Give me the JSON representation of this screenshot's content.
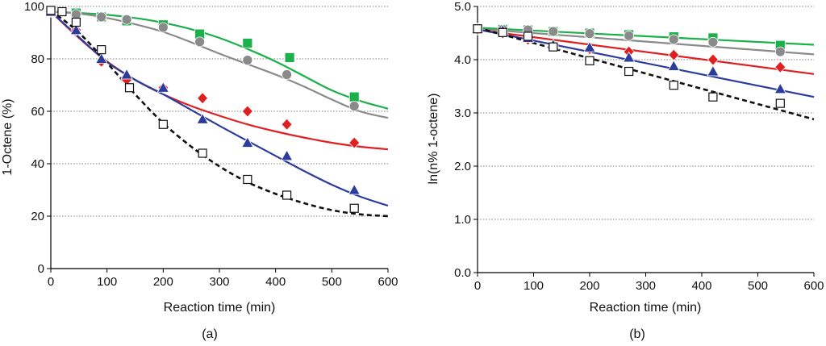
{
  "chart_data": [
    {
      "type": "scatter",
      "panel_label": "(a)",
      "xlabel": "Reaction time (min)",
      "ylabel": "1-Octene (%)",
      "xlim": [
        0,
        600
      ],
      "ylim": [
        0,
        100
      ],
      "xticks": [
        "0",
        "100",
        "200",
        "300",
        "400",
        "500",
        "600"
      ],
      "yticks": [
        "0",
        "20",
        "40",
        "60",
        "80",
        "100"
      ],
      "grid": "horizontal-dotted",
      "series": [
        {
          "name": "green squares",
          "color": "#1ab04a",
          "marker": "square-filled",
          "line": "solid",
          "points": [
            [
              0,
              98
            ],
            [
              45,
              97.5
            ],
            [
              90,
              96
            ],
            [
              135,
              94.5
            ],
            [
              200,
              93
            ],
            [
              265,
              89.5
            ],
            [
              350,
              86
            ],
            [
              425,
              80.5
            ],
            [
              540,
              65.5
            ]
          ],
          "fit": [
            [
              0,
              98
            ],
            [
              50,
              97.5
            ],
            [
              100,
              96.8
            ],
            [
              150,
              95.6
            ],
            [
              200,
              93.8
            ],
            [
              250,
              91.3
            ],
            [
              300,
              88
            ],
            [
              350,
              83.8
            ],
            [
              400,
              79
            ],
            [
              450,
              73.5
            ],
            [
              500,
              68
            ],
            [
              550,
              64
            ],
            [
              600,
              61
            ]
          ]
        },
        {
          "name": "gray circles",
          "color": "#8a8a8a",
          "marker": "circle-filled",
          "line": "solid",
          "points": [
            [
              0,
              98
            ],
            [
              45,
              97
            ],
            [
              90,
              96
            ],
            [
              135,
              95
            ],
            [
              200,
              92
            ],
            [
              265,
              86.5
            ],
            [
              350,
              79.5
            ],
            [
              420,
              74
            ],
            [
              540,
              62
            ]
          ],
          "fit": [
            [
              0,
              98
            ],
            [
              50,
              97.3
            ],
            [
              100,
              95.6
            ],
            [
              150,
              93.2
            ],
            [
              200,
              90.3
            ],
            [
              250,
              86.3
            ],
            [
              300,
              82
            ],
            [
              350,
              78
            ],
            [
              400,
              74
            ],
            [
              450,
              69.5
            ],
            [
              500,
              64.5
            ],
            [
              550,
              60
            ],
            [
              600,
              57.5
            ]
          ]
        },
        {
          "name": "red diamonds",
          "color": "#e02020",
          "marker": "diamond-filled",
          "line": "solid",
          "points": [
            [
              0,
              98
            ],
            [
              45,
              91
            ],
            [
              90,
              79
            ],
            [
              135,
              72
            ],
            [
              200,
              69
            ],
            [
              270,
              65
            ],
            [
              350,
              60
            ],
            [
              420,
              55
            ],
            [
              540,
              48
            ]
          ],
          "fit": [
            [
              0,
              98
            ],
            [
              50,
              88
            ],
            [
              100,
              79
            ],
            [
              150,
              72
            ],
            [
              200,
              66.5
            ],
            [
              250,
              62
            ],
            [
              300,
              58.3
            ],
            [
              350,
              55
            ],
            [
              400,
              52.3
            ],
            [
              450,
              50
            ],
            [
              500,
              48
            ],
            [
              550,
              46.5
            ],
            [
              600,
              45.5
            ]
          ]
        },
        {
          "name": "blue triangles",
          "color": "#2c3c9c",
          "marker": "triangle-filled",
          "line": "solid",
          "points": [
            [
              0,
              98
            ],
            [
              45,
              91
            ],
            [
              90,
              80
            ],
            [
              135,
              74
            ],
            [
              200,
              69
            ],
            [
              270,
              57
            ],
            [
              350,
              48
            ],
            [
              420,
              43
            ],
            [
              540,
              30
            ]
          ],
          "fit": [
            [
              0,
              98
            ],
            [
              50,
              88.3
            ],
            [
              100,
              78.8
            ],
            [
              150,
              72
            ],
            [
              200,
              66.5
            ],
            [
              250,
              60.5
            ],
            [
              300,
              54.5
            ],
            [
              350,
              48.7
            ],
            [
              400,
              43
            ],
            [
              450,
              37.3
            ],
            [
              500,
              32
            ],
            [
              550,
              27.5
            ],
            [
              600,
              24
            ]
          ]
        },
        {
          "name": "open squares",
          "color": "#111111",
          "marker": "square-open",
          "line": "dashed",
          "points": [
            [
              0,
              98.5
            ],
            [
              20,
              98
            ],
            [
              45,
              94
            ],
            [
              90,
              83.5
            ],
            [
              140,
              69
            ],
            [
              200,
              55
            ],
            [
              270,
              44
            ],
            [
              350,
              34
            ],
            [
              420,
              28
            ],
            [
              540,
              23
            ]
          ],
          "fit": [
            [
              0,
              98.5
            ],
            [
              50,
              90
            ],
            [
              100,
              78.5
            ],
            [
              150,
              66.5
            ],
            [
              200,
              55.5
            ],
            [
              250,
              46.5
            ],
            [
              300,
              39
            ],
            [
              350,
              33
            ],
            [
              400,
              28.5
            ],
            [
              450,
              25
            ],
            [
              500,
              22.3
            ],
            [
              550,
              20.7
            ],
            [
              600,
              20
            ]
          ]
        }
      ]
    },
    {
      "type": "scatter",
      "panel_label": "(b)",
      "xlabel": "Reaction time (min)",
      "ylabel": "ln(n% 1-octene)",
      "xlim": [
        0,
        600
      ],
      "ylim": [
        0,
        5
      ],
      "xticks": [
        "0",
        "100",
        "200",
        "300",
        "400",
        "500",
        "600"
      ],
      "yticks": [
        "0.0",
        "1.0",
        "2.0",
        "3.0",
        "4.0",
        "5.0"
      ],
      "grid": "horizontal-dotted",
      "series": [
        {
          "name": "green squares",
          "color": "#1ab04a",
          "marker": "square-filled",
          "line": "solid",
          "points": [
            [
              0,
              4.58
            ],
            [
              45,
              4.57
            ],
            [
              90,
              4.56
            ],
            [
              135,
              4.53
            ],
            [
              200,
              4.5
            ],
            [
              270,
              4.47
            ],
            [
              350,
              4.43
            ],
            [
              420,
              4.41
            ],
            [
              540,
              4.27
            ]
          ],
          "fit": [
            [
              0,
              4.6
            ],
            [
              600,
              4.28
            ]
          ]
        },
        {
          "name": "gray circles",
          "color": "#8a8a8a",
          "marker": "circle-filled",
          "line": "solid",
          "points": [
            [
              0,
              4.58
            ],
            [
              45,
              4.57
            ],
            [
              90,
              4.56
            ],
            [
              135,
              4.53
            ],
            [
              200,
              4.49
            ],
            [
              270,
              4.45
            ],
            [
              350,
              4.38
            ],
            [
              420,
              4.33
            ],
            [
              540,
              4.15
            ]
          ],
          "fit": [
            [
              0,
              4.58
            ],
            [
              600,
              4.1
            ]
          ]
        },
        {
          "name": "red diamonds",
          "color": "#e02020",
          "marker": "diamond-filled",
          "line": "solid",
          "points": [
            [
              0,
              4.57
            ],
            [
              45,
              4.5
            ],
            [
              90,
              4.38
            ],
            [
              135,
              4.26
            ],
            [
              200,
              4.2
            ],
            [
              270,
              4.15
            ],
            [
              350,
              4.09
            ],
            [
              420,
              4.0
            ],
            [
              540,
              3.86
            ]
          ],
          "fit": [
            [
              0,
              4.56
            ],
            [
              600,
              3.73
            ]
          ]
        },
        {
          "name": "blue triangles",
          "color": "#2c3c9c",
          "marker": "triangle-filled",
          "line": "solid",
          "points": [
            [
              0,
              4.58
            ],
            [
              45,
              4.55
            ],
            [
              90,
              4.41
            ],
            [
              135,
              4.28
            ],
            [
              200,
              4.23
            ],
            [
              270,
              4.04
            ],
            [
              350,
              3.88
            ],
            [
              420,
              3.78
            ],
            [
              540,
              3.45
            ]
          ],
          "fit": [
            [
              0,
              4.57
            ],
            [
              600,
              3.3
            ]
          ]
        },
        {
          "name": "open squares",
          "color": "#111111",
          "marker": "square-open",
          "line": "dashed",
          "points": [
            [
              0,
              4.58
            ],
            [
              45,
              4.51
            ],
            [
              90,
              4.44
            ],
            [
              135,
              4.24
            ],
            [
              200,
              3.98
            ],
            [
              270,
              3.78
            ],
            [
              350,
              3.52
            ],
            [
              420,
              3.3
            ],
            [
              540,
              3.18
            ]
          ],
          "fit": [
            [
              0,
              4.6
            ],
            [
              600,
              2.88
            ]
          ]
        }
      ]
    }
  ]
}
